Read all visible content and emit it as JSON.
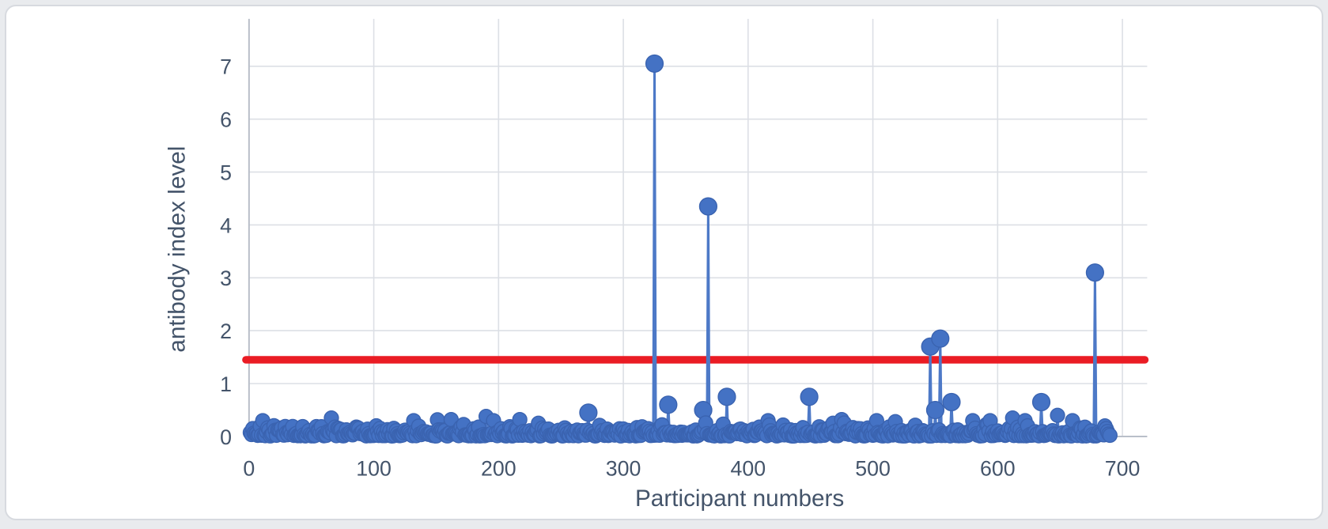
{
  "figure": {
    "kind": "scatter-line figure of antibody index per participant with threshold line",
    "background_color": "#ffffff",
    "frame_color": "#d7dadf"
  },
  "chart_data": {
    "type": "line",
    "subtype": "line-with-markers (stem-like spikes over dense near-zero baseline)",
    "title": "",
    "xlabel": "Participant numbers",
    "ylabel": "antibody index level",
    "x_ticks": [
      0,
      100,
      200,
      300,
      400,
      500,
      600,
      700
    ],
    "y_ticks": [
      0,
      1,
      2,
      3,
      4,
      5,
      6,
      7
    ],
    "xlim": [
      0,
      720
    ],
    "ylim": [
      0,
      7.85
    ],
    "grid": true,
    "legend": "none",
    "series_name": "antibody index level",
    "series_color": "#4472c4",
    "marker_stroke_color": "#3a63b0",
    "threshold_line": {
      "value": 1.45,
      "color": "#ea1c24",
      "extent_x": [
        0,
        718
      ]
    },
    "notable_points": [
      [
        11,
        0.3
      ],
      [
        66,
        0.35
      ],
      [
        132,
        0.3
      ],
      [
        190,
        0.38
      ],
      [
        196,
        0.3
      ],
      [
        232,
        0.25
      ],
      [
        272,
        0.45
      ],
      [
        325,
        7.05
      ],
      [
        336,
        0.6
      ],
      [
        364,
        0.5
      ],
      [
        368,
        4.35
      ],
      [
        383,
        0.75
      ],
      [
        416,
        0.3
      ],
      [
        449,
        0.75
      ],
      [
        468,
        0.25
      ],
      [
        503,
        0.3
      ],
      [
        518,
        0.28
      ],
      [
        546,
        1.7
      ],
      [
        550,
        0.5
      ],
      [
        554,
        1.85
      ],
      [
        563,
        0.65
      ],
      [
        580,
        0.3
      ],
      [
        594,
        0.3
      ],
      [
        612,
        0.35
      ],
      [
        622,
        0.3
      ],
      [
        635,
        0.65
      ],
      [
        648,
        0.4
      ],
      [
        660,
        0.3
      ],
      [
        678,
        3.1
      ],
      [
        686,
        0.2
      ]
    ],
    "baseline_noise": {
      "description": "dense band of ~690 participants with antibody index between 0 and ~0.3",
      "participants_from": 1,
      "participants_to": 690,
      "value_min": 0.01,
      "value_max": 0.32,
      "seed": 20
    }
  }
}
